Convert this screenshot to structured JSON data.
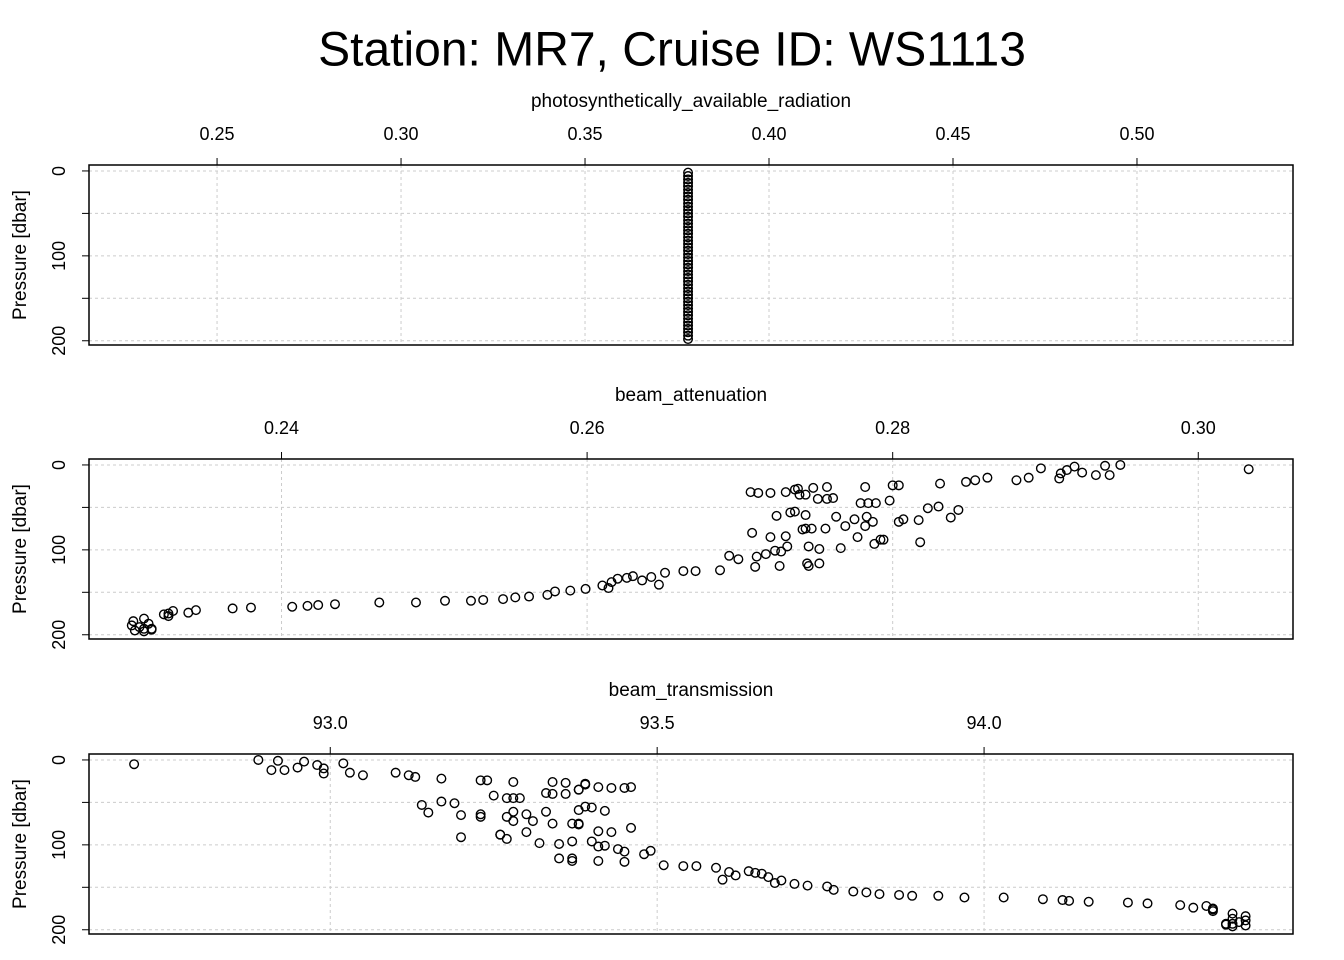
{
  "title": "Station: MR7, Cruise ID: WS1113",
  "chart_data": [
    {
      "type": "scatter",
      "x_label": "photosynthetically_available_radiation",
      "y_label": "Pressure [dbar]",
      "color": "#000000",
      "grid": true,
      "y_reversed": true,
      "xlim": [
        0.2152,
        0.5424
      ],
      "ylim": [
        -7,
        205
      ],
      "xticks": [
        0.25,
        {
          "value": 0.3,
          "label": "0.30"
        },
        0.35,
        {
          "value": 0.4,
          "label": "0.40"
        },
        0.45,
        {
          "value": 0.5,
          "label": "0.50"
        }
      ],
      "yticks": [
        0,
        100,
        200
      ],
      "yminor": [
        50,
        150
      ],
      "x": [
        0.378,
        0.378,
        0.378,
        0.378,
        0.378,
        0.378,
        0.378,
        0.378,
        0.378,
        0.378,
        0.378,
        0.378,
        0.378,
        0.378,
        0.378,
        0.378,
        0.378,
        0.378,
        0.378,
        0.378,
        0.378,
        0.378,
        0.378,
        0.378,
        0.378,
        0.378,
        0.378,
        0.378,
        0.378,
        0.378,
        0.378,
        0.378,
        0.378,
        0.378,
        0.378,
        0.378,
        0.378,
        0.378,
        0.378,
        0.378,
        0.378,
        0.378,
        0.378,
        0.378,
        0.378,
        0.378,
        0.378,
        0.378,
        0.378,
        0.378
      ],
      "y": [
        2,
        6,
        10,
        14,
        18,
        22,
        26,
        30,
        34,
        38,
        42,
        46,
        50,
        54,
        58,
        62,
        66,
        70,
        74,
        78,
        82,
        86,
        90,
        94,
        98,
        102,
        106,
        110,
        114,
        118,
        122,
        126,
        130,
        134,
        138,
        142,
        146,
        150,
        154,
        158,
        162,
        166,
        170,
        174,
        178,
        182,
        186,
        190,
        194,
        198
      ]
    },
    {
      "type": "scatter",
      "x_label": "beam_attenuation",
      "y_label": "Pressure [dbar]",
      "color": "#000000",
      "grid": true,
      "y_reversed": true,
      "xlim": [
        0.2274,
        0.3062
      ],
      "ylim": [
        -7,
        205
      ],
      "xticks": [
        0.24,
        0.26,
        0.28,
        {
          "value": 0.3,
          "label": "0.30"
        }
      ],
      "yticks": [
        0,
        100,
        200
      ],
      "yminor": [
        50,
        150
      ],
      "x": [
        0.3033,
        0.2949,
        0.2939,
        0.2942,
        0.2933,
        0.2924,
        0.2919,
        0.2914,
        0.291,
        0.2909,
        0.2897,
        0.2889,
        0.2881,
        0.2862,
        0.2854,
        0.2848,
        0.2831,
        0.2823,
        0.283,
        0.2843,
        0.2838,
        0.2817,
        0.2818,
        0.2804,
        0.28,
        0.2798,
        0.2807,
        0.2804,
        0.2794,
        0.2792,
        0.2788,
        0.2782,
        0.2789,
        0.2784,
        0.2779,
        0.2783,
        0.2782,
        0.2787,
        0.2775,
        0.2777,
        0.2769,
        0.2766,
        0.2763,
        0.2757,
        0.2761,
        0.2757,
        0.2751,
        0.2748,
        0.2743,
        0.2738,
        0.2739,
        0.2736,
        0.2743,
        0.2724,
        0.2733,
        0.2747,
        0.2743,
        0.2756,
        0.2752,
        0.2745,
        0.2741,
        0.273,
        0.272,
        0.2723,
        0.2727,
        0.2731,
        0.2752,
        0.2745,
        0.2744,
        0.2726,
        0.2717,
        0.2711,
        0.2699,
        0.2693,
        0.2708,
        0.2707,
        0.2712,
        0.272,
        0.273,
        0.2736,
        0.271,
        0.2687,
        0.2671,
        0.2663,
        0.2651,
        0.2647,
        0.2642,
        0.2636,
        0.263,
        0.2626,
        0.262,
        0.2616,
        0.2614,
        0.261,
        0.2599,
        0.2589,
        0.2579,
        0.2574,
        0.2562,
        0.2553,
        0.2545,
        0.2532,
        0.2524,
        0.2507,
        0.2488,
        0.2464,
        0.2435,
        0.2424,
        0.2417,
        0.2407,
        0.238,
        0.2368,
        0.2344,
        0.2339,
        0.2329,
        0.2326,
        0.2323,
        0.2326,
        0.231,
        0.2303,
        0.2302,
        0.2307,
        0.231,
        0.2315,
        0.2313,
        0.2304,
        0.231,
        0.2315
      ],
      "y": [
        5,
        0,
        1,
        12,
        12,
        9,
        2,
        6,
        10,
        16,
        4,
        15,
        18,
        15,
        18,
        20,
        22,
        51,
        49,
        53,
        62,
        65,
        91,
        24,
        24,
        42,
        64,
        67,
        88,
        88,
        93,
        26,
        45,
        45,
        45,
        61,
        72,
        67,
        64,
        85,
        72,
        98,
        61,
        26,
        39,
        40,
        40,
        27,
        35,
        28,
        35,
        55,
        59,
        60,
        56,
        75,
        75,
        75,
        99,
        96,
        76,
        84,
        85,
        101,
        102,
        96,
        116,
        119,
        116,
        119,
        105,
        108,
        111,
        107,
        80,
        32,
        33,
        33,
        32,
        29,
        120,
        124,
        125,
        125,
        127,
        141,
        132,
        136,
        131,
        133,
        134,
        138,
        145,
        142,
        146,
        148,
        149,
        153,
        155,
        156,
        158,
        159,
        160,
        160,
        162,
        162,
        164,
        165,
        166,
        167,
        168,
        169,
        171,
        174,
        172,
        175,
        176,
        178,
        181,
        184,
        189,
        191,
        193,
        193,
        187,
        195,
        196,
        194
      ]
    },
    {
      "type": "scatter",
      "x_label": "beam_transmission",
      "y_label": "Pressure [dbar]",
      "color": "#000000",
      "grid": true,
      "y_reversed": true,
      "xlim": [
        92.631,
        94.4725
      ],
      "ylim": [
        -7,
        205
      ],
      "xticks": [
        {
          "value": 93,
          "label": "93.0"
        },
        93.5,
        {
          "value": 94,
          "label": "94.0"
        }
      ],
      "yticks": [
        0,
        100,
        200
      ],
      "yminor": [
        50,
        150
      ],
      "x": [
        92.7,
        92.89,
        92.92,
        92.91,
        92.93,
        92.95,
        92.96,
        92.98,
        92.99,
        92.99,
        93.02,
        93.03,
        93.05,
        93.1,
        93.12,
        93.13,
        93.17,
        93.19,
        93.17,
        93.14,
        93.15,
        93.2,
        93.2,
        93.23,
        93.24,
        93.25,
        93.23,
        93.23,
        93.26,
        93.26,
        93.27,
        93.28,
        93.27,
        93.28,
        93.29,
        93.28,
        93.28,
        93.27,
        93.3,
        93.3,
        93.31,
        93.32,
        93.33,
        93.34,
        93.33,
        93.34,
        93.36,
        93.36,
        93.38,
        93.39,
        93.38,
        93.39,
        93.38,
        93.42,
        93.4,
        93.37,
        93.38,
        93.34,
        93.35,
        93.37,
        93.38,
        93.41,
        93.43,
        93.42,
        93.41,
        93.4,
        93.35,
        93.37,
        93.37,
        93.41,
        93.44,
        93.45,
        93.48,
        93.49,
        93.46,
        93.46,
        93.45,
        93.43,
        93.41,
        93.39,
        93.45,
        93.51,
        93.54,
        93.56,
        93.59,
        93.6,
        93.61,
        93.62,
        93.64,
        93.65,
        93.66,
        93.67,
        93.68,
        93.69,
        93.71,
        93.73,
        93.76,
        93.77,
        93.8,
        93.82,
        93.84,
        93.87,
        93.89,
        93.93,
        93.97,
        94.03,
        94.09,
        94.12,
        94.13,
        94.16,
        94.22,
        94.25,
        94.3,
        94.32,
        94.34,
        94.35,
        94.35,
        94.35,
        94.38,
        94.4,
        94.4,
        94.39,
        94.38,
        94.37,
        94.38,
        94.4,
        94.38,
        94.37
      ],
      "y": [
        5,
        0,
        1,
        12,
        12,
        9,
        2,
        6,
        10,
        16,
        4,
        15,
        18,
        15,
        18,
        20,
        22,
        51,
        49,
        53,
        62,
        65,
        91,
        24,
        24,
        42,
        64,
        67,
        88,
        88,
        93,
        26,
        45,
        45,
        45,
        61,
        72,
        67,
        64,
        85,
        72,
        98,
        61,
        26,
        39,
        40,
        40,
        27,
        35,
        28,
        35,
        55,
        59,
        60,
        56,
        75,
        75,
        75,
        99,
        96,
        76,
        84,
        85,
        101,
        102,
        96,
        116,
        119,
        116,
        119,
        105,
        108,
        111,
        107,
        80,
        32,
        33,
        33,
        32,
        29,
        120,
        124,
        125,
        125,
        127,
        141,
        132,
        136,
        131,
        133,
        134,
        138,
        145,
        142,
        146,
        148,
        149,
        153,
        155,
        156,
        158,
        159,
        160,
        160,
        162,
        162,
        164,
        165,
        166,
        167,
        168,
        169,
        171,
        174,
        172,
        175,
        176,
        178,
        181,
        184,
        189,
        191,
        193,
        193,
        187,
        195,
        196,
        194
      ]
    }
  ]
}
